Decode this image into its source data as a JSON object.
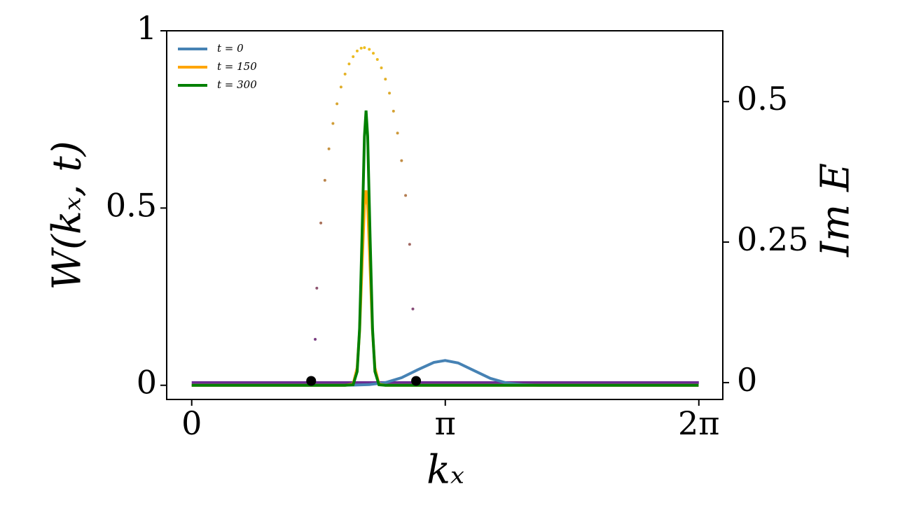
{
  "chart_data": {
    "type": "line",
    "xlabel": "kₓ",
    "ylabel": "W(kₓ, t)",
    "y2label": "Im E",
    "xlim": [
      -0.31,
      6.58
    ],
    "ylim": [
      -0.04,
      1
    ],
    "y2lim": [
      -0.03,
      0.626
    ],
    "xticks": [
      0,
      {
        "value": 3.14159,
        "label": "π"
      },
      {
        "value": 6.28319,
        "label": "2π"
      }
    ],
    "yticks": [
      0,
      0.5,
      1
    ],
    "y2ticks": [
      0,
      0.25,
      0.5
    ],
    "legend": "upper left",
    "series": [
      {
        "type": "line",
        "axis": "y2",
        "color": "#6a2c91",
        "x": [
          0,
          6.28319
        ],
        "values": [
          0,
          0
        ]
      },
      {
        "type": "scatter",
        "axis": "y2",
        "colormap": [
          "#6a2c91",
          "#f5c518"
        ],
        "x": [
          1.53,
          1.55,
          1.6,
          1.65,
          1.7,
          1.75,
          1.8,
          1.85,
          1.9,
          1.95,
          2.0,
          2.05,
          2.1,
          2.14,
          2.2,
          2.25,
          2.3,
          2.35,
          2.4,
          2.45,
          2.5,
          2.55,
          2.6,
          2.65,
          2.7,
          2.74
        ],
        "values": [
          0.077,
          0.168,
          0.284,
          0.36,
          0.416,
          0.461,
          0.496,
          0.526,
          0.549,
          0.567,
          0.58,
          0.59,
          0.595,
          0.596,
          0.593,
          0.586,
          0.575,
          0.56,
          0.54,
          0.515,
          0.483,
          0.444,
          0.395,
          0.333,
          0.246,
          0.131
        ]
      },
      {
        "name": "t = 0",
        "type": "line",
        "color": "#4682b4",
        "x": [
          0,
          0.5,
          1,
          1.5,
          2.0,
          2.2,
          2.4,
          2.6,
          2.8,
          3.0,
          3.14,
          3.3,
          3.5,
          3.7,
          3.9,
          4.1,
          4.3,
          4.5,
          5,
          5.5,
          6.28
        ],
        "values": [
          0,
          0,
          0,
          0,
          0.0004,
          0.0019,
          0.0075,
          0.0213,
          0.0437,
          0.0646,
          0.07,
          0.0631,
          0.0412,
          0.0195,
          0.0066,
          0.0016,
          0,
          0,
          0,
          0,
          0
        ]
      },
      {
        "name": "t = 150",
        "type": "line",
        "color": "#ffa500",
        "x": [
          0,
          1.9,
          2.0,
          2.05,
          2.08,
          2.11,
          2.14,
          2.16,
          2.18,
          2.21,
          2.24,
          2.27,
          2.32,
          2.4,
          6.28
        ],
        "values": [
          0,
          0,
          0.0033,
          0.049,
          0.153,
          0.334,
          0.508,
          0.55,
          0.508,
          0.334,
          0.153,
          0.049,
          0.0033,
          0,
          0
        ]
      },
      {
        "name": "t = 300",
        "type": "line",
        "color": "#008000",
        "x": [
          0,
          1.9,
          2.0,
          2.05,
          2.08,
          2.11,
          2.14,
          2.16,
          2.18,
          2.21,
          2.24,
          2.27,
          2.32,
          2.4,
          6.28
        ],
        "values": [
          0,
          0,
          0.0014,
          0.039,
          0.16,
          0.418,
          0.702,
          0.775,
          0.702,
          0.418,
          0.16,
          0.039,
          0.0014,
          0,
          0
        ]
      },
      {
        "type": "scatter",
        "axis": "y2",
        "color": "#000000",
        "size": 7,
        "x": [
          1.48,
          2.78
        ],
        "values": [
          0.003,
          0.003
        ]
      }
    ]
  }
}
